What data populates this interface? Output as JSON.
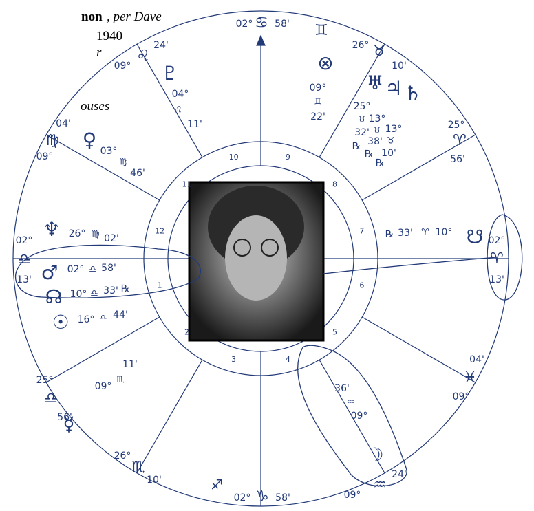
{
  "header": {
    "name": "non",
    "source": ", per Dave",
    "year": "1940",
    "line3": "r",
    "line4": "ouses"
  },
  "cusps": [
    {
      "degree": "02°",
      "sign": "♋",
      "minute": "58'"
    },
    {
      "degree": "26°",
      "sign": "♉",
      "minute": "10'"
    },
    {
      "degree": "25°",
      "sign": "♈",
      "minute": "56'"
    },
    {
      "degree": "02°",
      "sign": "♈",
      "minute": "13'"
    },
    {
      "degree": "09°",
      "sign": "♓",
      "minute": "04'"
    },
    {
      "degree": "09°",
      "sign": "♒",
      "minute": "24'"
    },
    {
      "degree": "02°",
      "sign": "♑",
      "minute": "58'"
    },
    {
      "degree": "26°",
      "sign": "♏",
      "minute": "10'"
    },
    {
      "degree": "25°",
      "sign": "♎",
      "minute": "56'"
    },
    {
      "degree": "02°",
      "sign": "♎",
      "minute": "13'"
    },
    {
      "degree": "09°",
      "sign": "♍",
      "minute": "04'"
    },
    {
      "degree": "09°",
      "sign": "♌",
      "minute": "24'"
    }
  ],
  "intercepted": [
    "♊",
    "♐"
  ],
  "planets": [
    {
      "glyph": "♇",
      "degree": "04°",
      "sign": "♌",
      "minute": "11'"
    },
    {
      "glyph": "⊗",
      "degree": "09°",
      "sign": "♊",
      "minute": "22'"
    },
    {
      "glyph": "♅",
      "degree": "25°",
      "sign": "♉",
      "minute": "32'",
      "retro": "℞"
    },
    {
      "glyph": "♃",
      "degree": "13°",
      "sign": "♉",
      "minute": "38'",
      "retro": "℞"
    },
    {
      "glyph": "♄",
      "degree": "13°",
      "sign": "♉",
      "minute": "10'",
      "retro": "℞"
    },
    {
      "glyph": "♀",
      "degree": "03°",
      "sign": "♍",
      "minute": "46'"
    },
    {
      "glyph": "♆",
      "degree": "26°",
      "sign": "♍",
      "minute": "02'"
    },
    {
      "glyph": "♂",
      "degree": "02°",
      "sign": "♎",
      "minute": "58'"
    },
    {
      "glyph": "☊",
      "degree": "10°",
      "sign": "♎",
      "minute": "33'",
      "retro": "℞"
    },
    {
      "glyph": "☉",
      "degree": "16°",
      "sign": "♎",
      "minute": "44'"
    },
    {
      "glyph": "☿",
      "degree": "09°",
      "sign": "♏",
      "minute": "11'"
    },
    {
      "glyph": "☽",
      "degree": "09°",
      "sign": "♒",
      "minute": "36'"
    },
    {
      "glyph": "☋",
      "degree": "10°",
      "sign": "♈",
      "minute": "33'",
      "retro": "℞"
    }
  ],
  "houses": [
    "1",
    "2",
    "3",
    "4",
    "5",
    "6",
    "7",
    "8",
    "9",
    "10",
    "11",
    "12"
  ]
}
